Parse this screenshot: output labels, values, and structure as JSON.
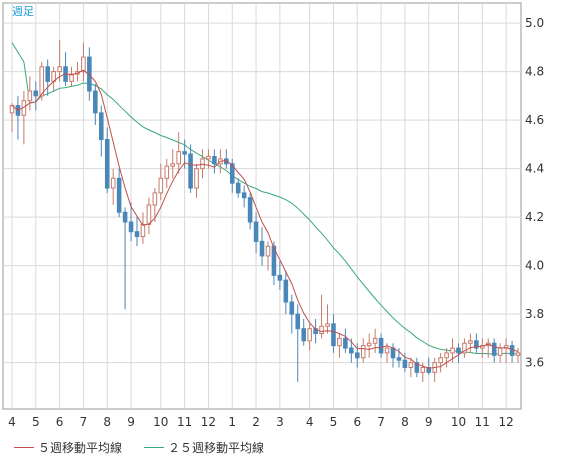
{
  "chart_data": {
    "type": "candlestick",
    "title": "週足",
    "ylim": [
      3.4,
      5.0
    ],
    "y_ticks": [
      "5.0",
      "4.8",
      "4.6",
      "4.4",
      "4.2",
      "4.0",
      "3.8",
      "3.6"
    ],
    "y_tick_values": [
      5.0,
      4.8,
      4.6,
      4.4,
      4.2,
      4.0,
      3.8,
      3.6
    ],
    "x_tick_labels": [
      "4",
      "5",
      "6",
      "7",
      "8",
      "9",
      "10",
      "11",
      "12",
      "1",
      "2",
      "3",
      "4",
      "5",
      "6",
      "7",
      "8",
      "9",
      "10",
      "11",
      "12"
    ],
    "x_tick_index": [
      0,
      4,
      8,
      12,
      16,
      20,
      25,
      29,
      33,
      37,
      41,
      45,
      50,
      54,
      58,
      62,
      66,
      70,
      75,
      79,
      83
    ],
    "grid": true,
    "up_color": "#c87a6a",
    "down_color": "#4a86b8",
    "ma5_color": "#c0504d",
    "ma25_color": "#3aaa7a",
    "candles": [
      [
        4.63,
        4.67,
        4.55,
        4.66
      ],
      [
        4.66,
        4.7,
        4.52,
        4.62
      ],
      [
        4.62,
        4.72,
        4.5,
        4.68
      ],
      [
        4.68,
        4.78,
        4.64,
        4.72
      ],
      [
        4.72,
        4.76,
        4.64,
        4.7
      ],
      [
        4.7,
        4.84,
        4.68,
        4.82
      ],
      [
        4.82,
        4.85,
        4.7,
        4.76
      ],
      [
        4.76,
        4.82,
        4.72,
        4.8
      ],
      [
        4.8,
        4.93,
        4.76,
        4.82
      ],
      [
        4.82,
        4.88,
        4.74,
        4.76
      ],
      [
        4.76,
        4.82,
        4.74,
        4.79
      ],
      [
        4.79,
        4.84,
        4.76,
        4.8
      ],
      [
        4.8,
        4.92,
        4.76,
        4.86
      ],
      [
        4.86,
        4.9,
        4.68,
        4.72
      ],
      [
        4.72,
        4.75,
        4.58,
        4.63
      ],
      [
        4.63,
        4.66,
        4.45,
        4.52
      ],
      [
        4.52,
        4.57,
        4.3,
        4.32
      ],
      [
        4.32,
        4.4,
        4.25,
        4.36
      ],
      [
        4.36,
        4.4,
        4.2,
        4.22
      ],
      [
        4.22,
        4.24,
        3.82,
        4.18
      ],
      [
        4.18,
        4.26,
        4.1,
        4.14
      ],
      [
        4.14,
        4.2,
        4.08,
        4.12
      ],
      [
        4.12,
        4.22,
        4.09,
        4.17
      ],
      [
        4.17,
        4.28,
        4.13,
        4.25
      ],
      [
        4.25,
        4.32,
        4.18,
        4.3
      ],
      [
        4.3,
        4.42,
        4.27,
        4.36
      ],
      [
        4.36,
        4.44,
        4.32,
        4.41
      ],
      [
        4.41,
        4.48,
        4.36,
        4.42
      ],
      [
        4.42,
        4.55,
        4.38,
        4.47
      ],
      [
        4.47,
        4.52,
        4.4,
        4.46
      ],
      [
        4.46,
        4.5,
        4.3,
        4.32
      ],
      [
        4.32,
        4.42,
        4.28,
        4.4
      ],
      [
        4.4,
        4.48,
        4.36,
        4.44
      ],
      [
        4.44,
        4.48,
        4.4,
        4.45
      ],
      [
        4.45,
        4.48,
        4.38,
        4.42
      ],
      [
        4.42,
        4.48,
        4.38,
        4.44
      ],
      [
        4.44,
        4.48,
        4.4,
        4.42
      ],
      [
        4.42,
        4.44,
        4.3,
        4.34
      ],
      [
        4.34,
        4.36,
        4.28,
        4.3
      ],
      [
        4.3,
        4.33,
        4.24,
        4.28
      ],
      [
        4.28,
        4.3,
        4.15,
        4.18
      ],
      [
        4.18,
        4.22,
        4.05,
        4.1
      ],
      [
        4.1,
        4.16,
        4.0,
        4.04
      ],
      [
        4.04,
        4.1,
        3.98,
        4.08
      ],
      [
        4.08,
        4.1,
        3.92,
        3.96
      ],
      [
        3.96,
        4.02,
        3.9,
        3.94
      ],
      [
        3.94,
        3.98,
        3.8,
        3.85
      ],
      [
        3.85,
        3.88,
        3.72,
        3.8
      ],
      [
        3.8,
        3.84,
        3.52,
        3.74
      ],
      [
        3.74,
        3.78,
        3.67,
        3.69
      ],
      [
        3.69,
        3.76,
        3.65,
        3.74
      ],
      [
        3.74,
        3.78,
        3.68,
        3.72
      ],
      [
        3.72,
        3.88,
        3.7,
        3.75
      ],
      [
        3.75,
        3.84,
        3.72,
        3.76
      ],
      [
        3.76,
        3.8,
        3.64,
        3.67
      ],
      [
        3.67,
        3.72,
        3.62,
        3.7
      ],
      [
        3.7,
        3.74,
        3.64,
        3.66
      ],
      [
        3.66,
        3.7,
        3.6,
        3.64
      ],
      [
        3.64,
        3.68,
        3.58,
        3.62
      ],
      [
        3.62,
        3.7,
        3.6,
        3.67
      ],
      [
        3.67,
        3.72,
        3.62,
        3.68
      ],
      [
        3.68,
        3.74,
        3.64,
        3.7
      ],
      [
        3.7,
        3.72,
        3.62,
        3.64
      ],
      [
        3.64,
        3.68,
        3.6,
        3.66
      ],
      [
        3.66,
        3.68,
        3.58,
        3.62
      ],
      [
        3.62,
        3.66,
        3.58,
        3.61
      ],
      [
        3.61,
        3.64,
        3.56,
        3.58
      ],
      [
        3.58,
        3.62,
        3.54,
        3.6
      ],
      [
        3.6,
        3.62,
        3.54,
        3.56
      ],
      [
        3.56,
        3.6,
        3.52,
        3.58
      ],
      [
        3.58,
        3.62,
        3.55,
        3.56
      ],
      [
        3.56,
        3.62,
        3.52,
        3.6
      ],
      [
        3.6,
        3.64,
        3.56,
        3.62
      ],
      [
        3.62,
        3.66,
        3.58,
        3.64
      ],
      [
        3.64,
        3.7,
        3.6,
        3.66
      ],
      [
        3.66,
        3.68,
        3.6,
        3.64
      ],
      [
        3.64,
        3.7,
        3.62,
        3.68
      ],
      [
        3.68,
        3.72,
        3.64,
        3.69
      ],
      [
        3.69,
        3.72,
        3.64,
        3.66
      ],
      [
        3.66,
        3.7,
        3.62,
        3.67
      ],
      [
        3.67,
        3.7,
        3.62,
        3.68
      ],
      [
        3.68,
        3.7,
        3.6,
        3.63
      ],
      [
        3.63,
        3.68,
        3.6,
        3.66
      ],
      [
        3.66,
        3.7,
        3.6,
        3.67
      ],
      [
        3.67,
        3.69,
        3.6,
        3.63
      ],
      [
        3.63,
        3.66,
        3.6,
        3.64
      ]
    ],
    "legend": [
      {
        "label": "５週移動平均線",
        "color": "#c0504d"
      },
      {
        "label": "２５週移動平均線",
        "color": "#3aaa7a"
      }
    ]
  }
}
